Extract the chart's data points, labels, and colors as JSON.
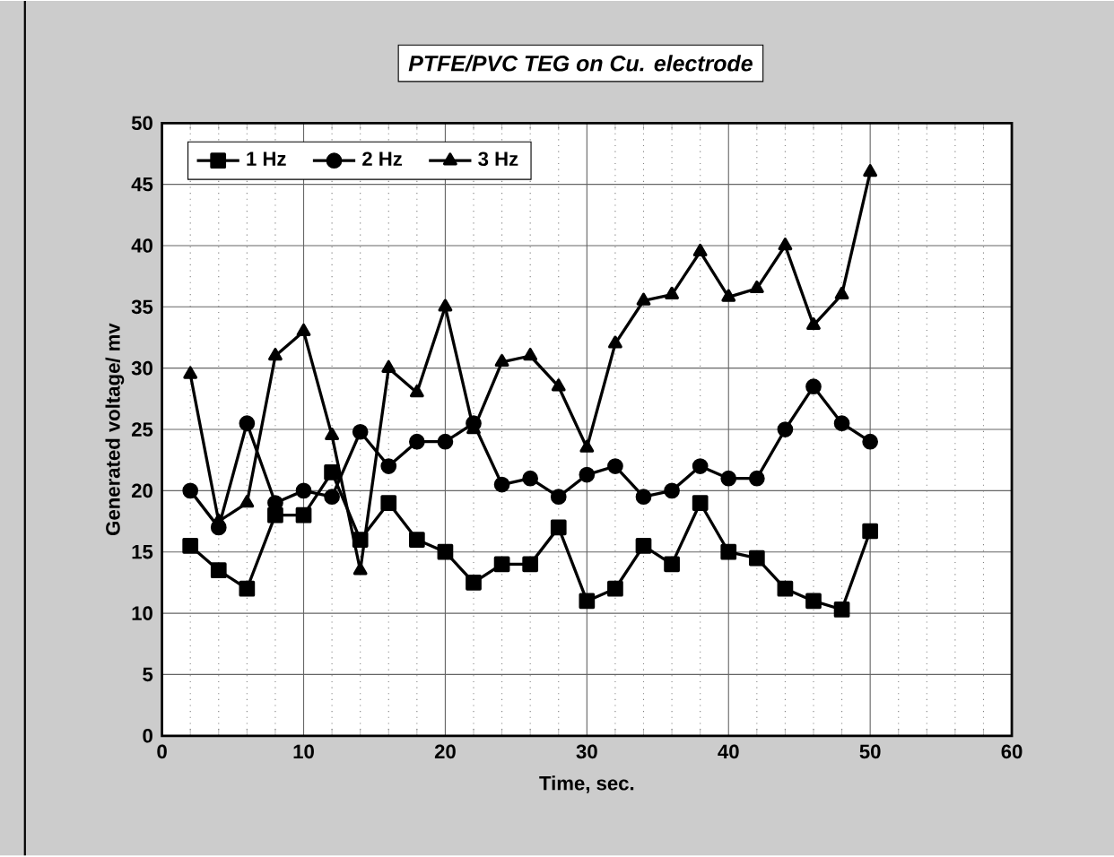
{
  "chart_data": {
    "type": "line",
    "title": "PTFE/PVC TEG on  Cu. electrode",
    "xlabel": "Time, sec.",
    "ylabel": "Generated voltage/ mv",
    "x": [
      2,
      4,
      6,
      8,
      10,
      12,
      14,
      16,
      18,
      20,
      22,
      24,
      26,
      28,
      30,
      32,
      34,
      36,
      38,
      40,
      42,
      44,
      46,
      48,
      50
    ],
    "series": [
      {
        "name": "1 Hz",
        "color": "#000000",
        "marker": "square",
        "values": [
          15.5,
          13.5,
          12,
          18,
          18,
          21.5,
          16,
          19,
          16,
          15,
          12.5,
          14,
          14,
          17,
          11,
          12,
          15.5,
          14,
          19,
          15,
          14.5,
          12,
          11,
          10.3,
          16.7
        ]
      },
      {
        "name": "2 Hz",
        "color": "#000000",
        "marker": "circle",
        "values": [
          20,
          17,
          25.5,
          19,
          20,
          19.5,
          24.8,
          22,
          24,
          24,
          25.5,
          20.5,
          21,
          19.5,
          21.3,
          22,
          19.5,
          20,
          22,
          21,
          21,
          25,
          28.5,
          25.5,
          24
        ]
      },
      {
        "name": "3 Hz",
        "color": "#000000",
        "marker": "triangle",
        "values": [
          29.5,
          17.5,
          19,
          31,
          33,
          24.5,
          13.5,
          30,
          28,
          35,
          25,
          30.5,
          31,
          28.5,
          23.5,
          32,
          35.5,
          36,
          39.5,
          35.8,
          36.5,
          40,
          33.5,
          36,
          46
        ]
      }
    ],
    "xlim": [
      0,
      60
    ],
    "xticks": [
      0,
      10,
      20,
      30,
      40,
      50,
      60
    ],
    "ylim": [
      0,
      50
    ],
    "yticks": [
      0,
      5,
      10,
      15,
      20,
      25,
      30,
      35,
      40,
      45,
      50
    ],
    "grid": true,
    "legend": "top left",
    "line_style": "solid"
  }
}
